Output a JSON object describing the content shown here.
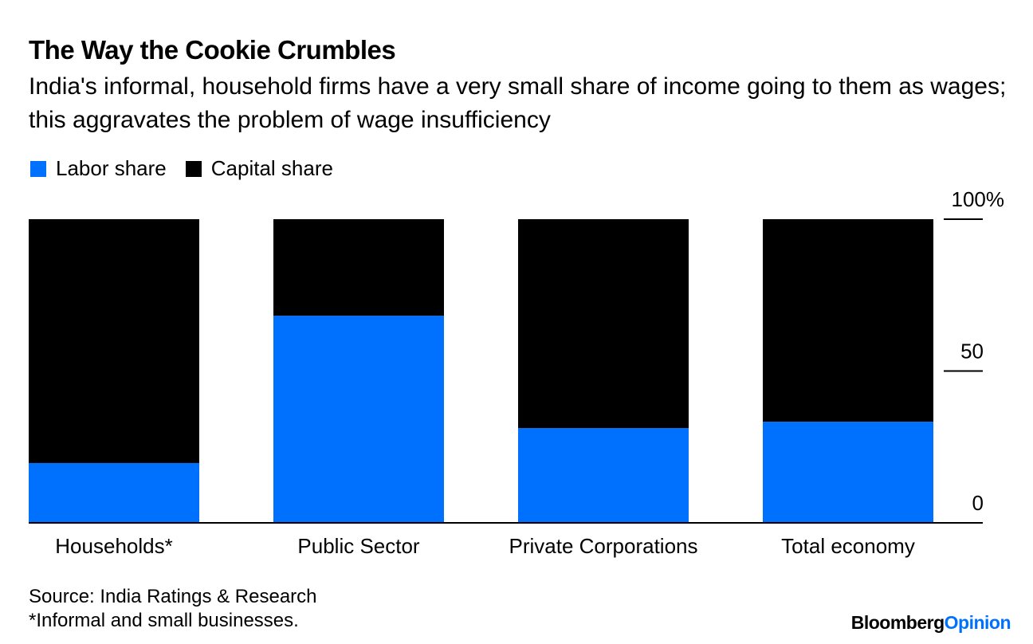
{
  "header": {
    "title": "The Way the Cookie Crumbles",
    "subtitle": "India's informal, household firms have a very small share of income going to them as wages; this aggravates the problem of wage insufficiency"
  },
  "footer": {
    "source": "Source: India Ratings & Research",
    "note": "*Informal and small businesses.",
    "brand_main": "Bloomberg",
    "brand_accent": "Opinion"
  },
  "colors": {
    "labor": "#0070ff",
    "capital": "#000000",
    "brand_accent": "#0070ff"
  },
  "chart_data": {
    "type": "bar",
    "stacked": true,
    "title": "The Way the Cookie Crumbles",
    "xlabel": "",
    "ylabel": "",
    "ylim": [
      0,
      100
    ],
    "yticks": [
      {
        "value": 0,
        "label": "0"
      },
      {
        "value": 50,
        "label": "50"
      },
      {
        "value": 100,
        "label": "100%"
      }
    ],
    "legend_position": "top-left",
    "categories": [
      "Households*",
      "Public Sector",
      "Private Corporations",
      "Total economy"
    ],
    "series": [
      {
        "name": "Labor share",
        "values": [
          19.7,
          68.2,
          31.2,
          33.3
        ]
      },
      {
        "name": "Capital share",
        "values": [
          80.3,
          31.8,
          68.8,
          66.7
        ]
      }
    ]
  }
}
